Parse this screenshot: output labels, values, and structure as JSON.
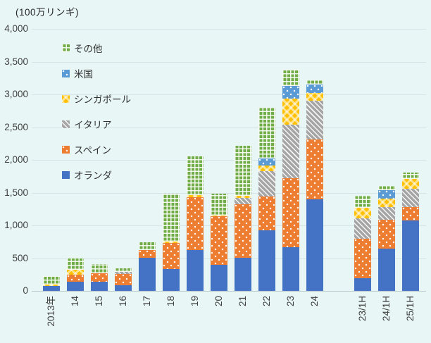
{
  "colors": {
    "background": "#E8F6F6",
    "gridline": "#D5E5E7",
    "axis_line": "#B9C8CA",
    "text": "#404040"
  },
  "chart_data": {
    "type": "bar",
    "stacked": true,
    "title": "(100万リンギ)",
    "unit_label": "(100万リンギ)",
    "xlabel": "",
    "ylabel": "",
    "ylim": [
      0,
      4000
    ],
    "ytick_step": 500,
    "grid": true,
    "legend_position": "inside-top-left",
    "legend_order_top_to_bottom": [
      "その他",
      "米国",
      "シンガポール",
      "イタリア",
      "スペイン",
      "オランダ"
    ],
    "categories": [
      "2013年",
      "14",
      "15",
      "16",
      "17",
      "18",
      "19",
      "20",
      "21",
      "22",
      "23",
      "24",
      "23/1H",
      "24/1H",
      "25/1H"
    ],
    "group_gap_after_index": 11,
    "series": [
      {
        "name": "オランダ",
        "color": "#4472C4",
        "pattern": "solid",
        "values": [
          75,
          140,
          135,
          85,
          505,
          330,
          625,
          400,
          505,
          930,
          665,
          1395,
          190,
          640,
          1070
        ]
      },
      {
        "name": "スペイン",
        "color": "#ED7D31",
        "pattern": "dots",
        "values": [
          0,
          105,
          135,
          175,
          120,
          405,
          810,
          735,
          815,
          510,
          1060,
          915,
          610,
          445,
          215
        ]
      },
      {
        "name": "イタリア",
        "color": "#A5A5A5",
        "pattern": "diagonal",
        "values": [
          0,
          0,
          0,
          30,
          0,
          0,
          0,
          0,
          105,
          385,
          815,
          590,
          305,
          200,
          270
        ]
      },
      {
        "name": "シンガポール",
        "color": "#FFC000",
        "pattern": "checker",
        "values": [
          25,
          80,
          0,
          0,
          0,
          20,
          25,
          20,
          25,
          90,
          395,
          125,
          160,
          125,
          160
        ]
      },
      {
        "name": "米国",
        "color": "#5B9BD5",
        "pattern": "dots",
        "values": [
          0,
          0,
          0,
          0,
          0,
          0,
          0,
          0,
          0,
          110,
          195,
          125,
          0,
          125,
          0
        ]
      },
      {
        "name": "その他",
        "color": "#70AD47",
        "pattern": "grid",
        "values": [
          130,
          175,
          140,
          55,
          120,
          725,
          590,
          325,
          770,
          770,
          250,
          70,
          185,
          65,
          95
        ]
      }
    ],
    "totals": [
      230,
      500,
      410,
      345,
      745,
      1480,
      2050,
      1480,
      2220,
      2795,
      3380,
      3220,
      1450,
      1600,
      1810
    ]
  }
}
